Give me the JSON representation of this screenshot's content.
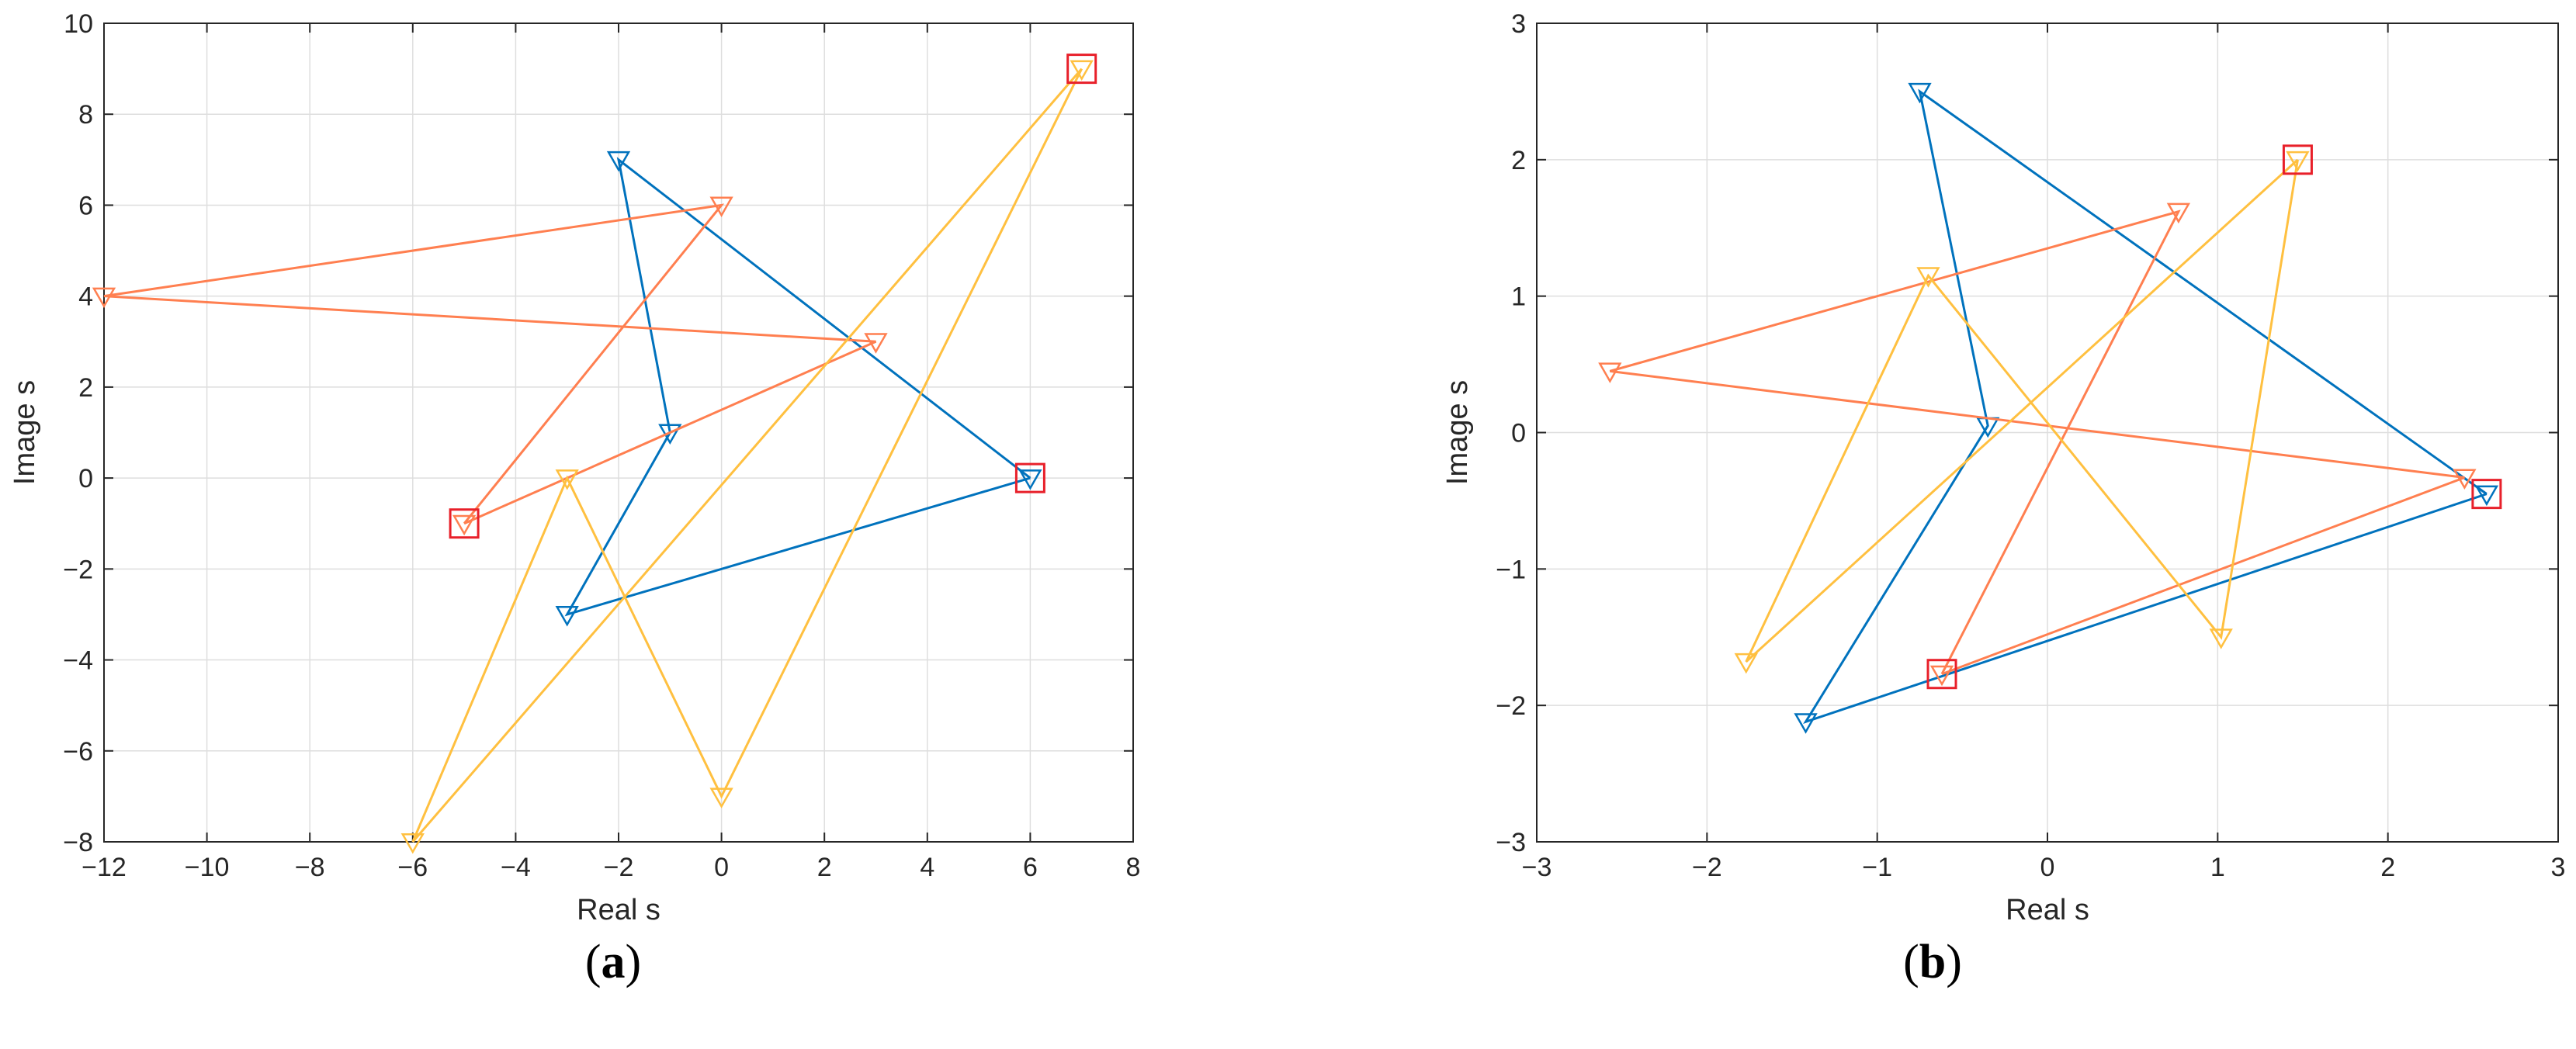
{
  "colors": {
    "blue": "#0072BD",
    "orange": "#FF7F50",
    "yellow": "#FFC040",
    "square": "#E8202A",
    "grid": "#DEDEDE",
    "axis": "#262626"
  },
  "captions": {
    "a": "a",
    "b": "b"
  },
  "chart_data": [
    {
      "type": "line",
      "xlabel": "Real s",
      "ylabel": "Image s",
      "xlim": [
        -12,
        8
      ],
      "ylim": [
        -8,
        10
      ],
      "xticks": [
        -12,
        -10,
        -8,
        -6,
        -4,
        -2,
        0,
        2,
        4,
        6,
        8
      ],
      "yticks": [
        -8,
        -6,
        -4,
        -2,
        0,
        2,
        4,
        6,
        8,
        10
      ],
      "grid": true,
      "series": [
        {
          "color": "blue",
          "marker": "triangle-down",
          "points": [
            [
              6,
              0
            ],
            [
              -2,
              7
            ],
            [
              -1,
              1
            ],
            [
              -3,
              -3
            ],
            [
              6,
              0
            ]
          ]
        },
        {
          "color": "orange",
          "marker": "triangle-down",
          "points": [
            [
              -5,
              -1
            ],
            [
              0,
              6
            ],
            [
              -12,
              4
            ],
            [
              3,
              3
            ],
            [
              -5,
              -1
            ]
          ]
        },
        {
          "color": "yellow",
          "marker": "triangle-down",
          "points": [
            [
              7,
              9
            ],
            [
              -6,
              -8
            ],
            [
              -3,
              0
            ],
            [
              0,
              -7
            ],
            [
              7,
              9
            ]
          ]
        }
      ],
      "square_markers": [
        [
          7,
          9
        ],
        [
          6,
          0
        ],
        [
          -5,
          -1
        ]
      ]
    },
    {
      "type": "line",
      "xlabel": "Real s",
      "ylabel": "Image s",
      "xlim": [
        -3,
        3
      ],
      "ylim": [
        -3,
        3
      ],
      "xticks": [
        -3,
        -2,
        -1,
        0,
        1,
        2,
        3
      ],
      "yticks": [
        -3,
        -2,
        -1,
        0,
        1,
        2,
        3
      ],
      "grid": true,
      "series": [
        {
          "color": "blue",
          "marker": "triangle-down",
          "points": [
            [
              2.58,
              -0.45
            ],
            [
              -0.75,
              2.5
            ],
            [
              -0.35,
              0.05
            ],
            [
              -1.42,
              -2.12
            ],
            [
              2.58,
              -0.45
            ]
          ]
        },
        {
          "color": "orange",
          "marker": "triangle-down",
          "points": [
            [
              -0.62,
              -1.77
            ],
            [
              0.77,
              1.62
            ],
            [
              -2.57,
              0.45
            ],
            [
              2.45,
              -0.33
            ],
            [
              -0.62,
              -1.77
            ]
          ]
        },
        {
          "color": "yellow",
          "marker": "triangle-down",
          "points": [
            [
              1.47,
              2.0
            ],
            [
              -1.77,
              -1.68
            ],
            [
              -0.7,
              1.15
            ],
            [
              1.02,
              -1.5
            ],
            [
              1.47,
              2.0
            ]
          ]
        }
      ],
      "square_markers": [
        [
          1.47,
          2.0
        ],
        [
          2.58,
          -0.45
        ],
        [
          -0.62,
          -1.77
        ]
      ]
    }
  ]
}
